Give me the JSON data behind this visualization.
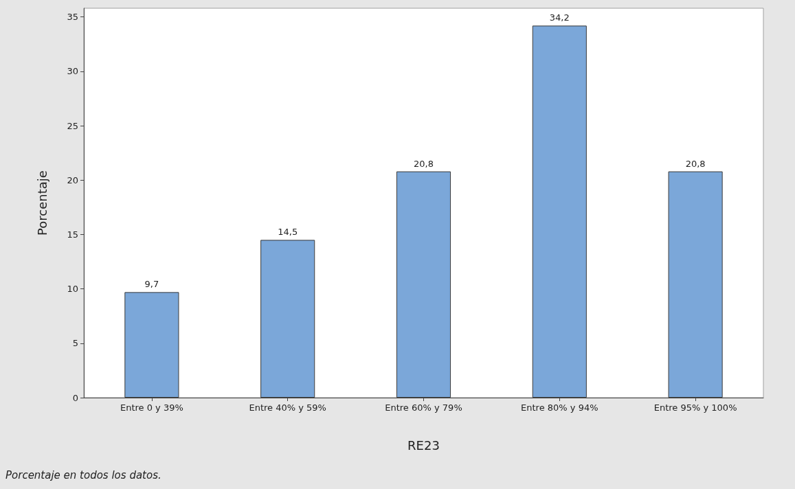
{
  "chart_data": {
    "type": "bar",
    "xlabel": "RE23",
    "ylabel": "Porcentaje",
    "categories": [
      "Entre 0 y 39%",
      "Entre 40% y 59%",
      "Entre 60% y 79%",
      "Entre 80% y 94%",
      "Entre 95% y 100%"
    ],
    "values": [
      9.7,
      14.5,
      20.8,
      34.2,
      20.8
    ],
    "value_labels": [
      "9,7",
      "14,5",
      "20,8",
      "34,2",
      "20,8"
    ],
    "color": "#7ba7d9",
    "ylim": [
      0,
      35.8
    ],
    "yticks": [
      0,
      5,
      10,
      15,
      20,
      25,
      30,
      35
    ],
    "annotations": [
      "Porcentaje en todos los datos."
    ]
  }
}
